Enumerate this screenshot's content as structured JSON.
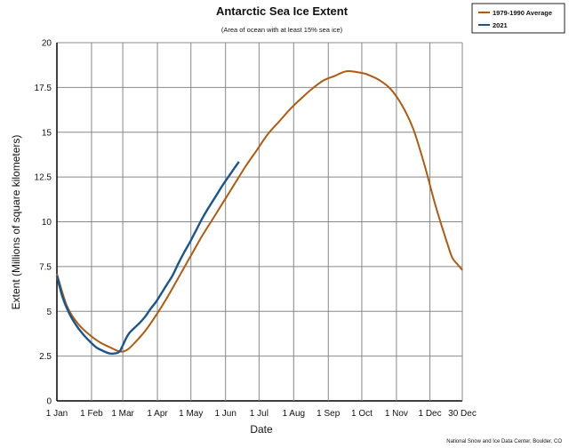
{
  "chart_data": {
    "type": "line",
    "title": "Antarctic Sea Ice Extent",
    "subtitle": "(Area of ocean with at least 15% sea ice)",
    "xlabel": "Date",
    "ylabel": "Extent (Millions of square kilometers)",
    "credit": "National Snow and Ice Data Center, Boulder, CO",
    "ylim": [
      0,
      20
    ],
    "xlim": [
      1,
      364
    ],
    "y_ticks": [
      0,
      2.5,
      5,
      7.5,
      10,
      12.5,
      15,
      17.5,
      20
    ],
    "y_tick_labels": [
      "0",
      "2.5",
      "5",
      "7.5",
      "10",
      "12.5",
      "15",
      "17.5",
      "20"
    ],
    "x_ticks": [
      {
        "day": 1,
        "label": "1 Jan"
      },
      {
        "day": 32,
        "label": "1 Feb"
      },
      {
        "day": 60,
        "label": "1 Mar"
      },
      {
        "day": 91,
        "label": "1 Apr"
      },
      {
        "day": 121,
        "label": "1 May"
      },
      {
        "day": 152,
        "label": "1 Jun"
      },
      {
        "day": 182,
        "label": "1 Jul"
      },
      {
        "day": 213,
        "label": "1 Aug"
      },
      {
        "day": 244,
        "label": "1 Sep"
      },
      {
        "day": 274,
        "label": "1 Oct"
      },
      {
        "day": 305,
        "label": "1 Nov"
      },
      {
        "day": 335,
        "label": "1 Dec"
      },
      {
        "day": 364,
        "label": "30 Dec"
      }
    ],
    "grid": true,
    "legend_position": "top-right",
    "series": [
      {
        "name": "1979-1990 Average",
        "color": "#b05a10",
        "x": [
          1,
          10,
          20,
          30,
          40,
          50,
          55,
          60,
          65,
          70,
          80,
          90,
          100,
          110,
          120,
          130,
          140,
          150,
          160,
          170,
          180,
          190,
          200,
          210,
          220,
          230,
          240,
          250,
          255,
          260,
          265,
          270,
          275,
          280,
          290,
          300,
          310,
          320,
          330,
          340,
          350,
          355,
          360,
          364
        ],
        "y": [
          7.1,
          5.3,
          4.3,
          3.7,
          3.25,
          2.95,
          2.8,
          2.75,
          2.9,
          3.2,
          3.9,
          4.8,
          5.8,
          6.9,
          8.0,
          9.1,
          10.1,
          11.1,
          12.1,
          13.1,
          14.0,
          14.9,
          15.6,
          16.3,
          16.9,
          17.45,
          17.9,
          18.15,
          18.3,
          18.4,
          18.4,
          18.35,
          18.3,
          18.2,
          17.9,
          17.4,
          16.5,
          15.2,
          13.2,
          10.9,
          8.9,
          8.0,
          7.6,
          7.3
        ],
        "end_label": "1979-1990 Average"
      },
      {
        "name": "2021",
        "color": "#1a5590",
        "x": [
          1,
          6,
          12,
          18,
          24,
          30,
          36,
          42,
          48,
          53,
          57,
          60,
          63,
          66,
          70,
          75,
          80,
          85,
          90,
          95,
          100,
          105,
          110,
          115,
          120,
          125,
          130,
          135,
          140,
          145,
          150,
          155,
          160,
          164
        ],
        "y": [
          7.0,
          5.8,
          4.9,
          4.25,
          3.75,
          3.35,
          3.0,
          2.8,
          2.65,
          2.65,
          2.75,
          3.1,
          3.5,
          3.8,
          4.05,
          4.35,
          4.7,
          5.15,
          5.55,
          6.05,
          6.55,
          7.05,
          7.7,
          8.3,
          8.85,
          9.45,
          10.05,
          10.6,
          11.1,
          11.6,
          12.1,
          12.55,
          13.0,
          13.35
        ],
        "end_label": "2021"
      }
    ]
  }
}
